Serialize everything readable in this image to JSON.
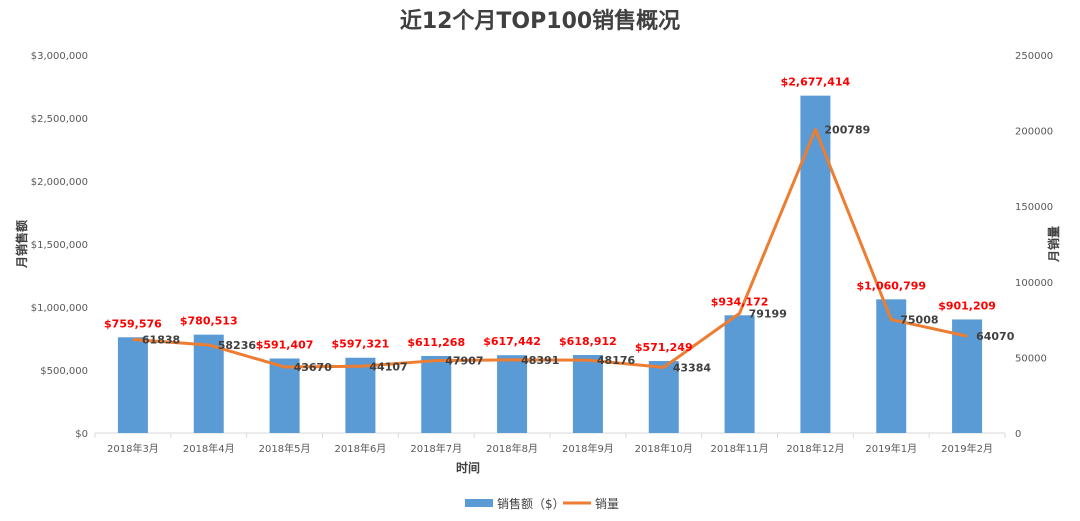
{
  "chart_data": {
    "type": "bar+line",
    "title": "近12个月TOP100销售概况",
    "xlabel": "时间",
    "ylabel": "月销售额",
    "y2label": "月销量",
    "categories": [
      "2018年3月",
      "2018年4月",
      "2018年5月",
      "2018年6月",
      "2018年7月",
      "2018年8月",
      "2018年9月",
      "2018年10月",
      "2018年11月",
      "2018年12月",
      "2019年1月",
      "2019年2月"
    ],
    "series": [
      {
        "name": "销售额（$）",
        "type": "bar",
        "axis": "left",
        "color": "#5b9bd5",
        "values": [
          759576,
          780513,
          591407,
          597321,
          611268,
          617442,
          618912,
          571249,
          934172,
          2677414,
          1060799,
          901209
        ],
        "labels": [
          "$759,576",
          "$780,513",
          "$591,407",
          "$597,321",
          "$611,268",
          "$617,442",
          "$618,912",
          "$571,249",
          "$934,172",
          "$2,677,414",
          "$1,060,799",
          "$901,209"
        ]
      },
      {
        "name": "销量",
        "type": "line",
        "axis": "right",
        "color": "#ed7d31",
        "values": [
          61838,
          58236,
          43670,
          44107,
          47907,
          48391,
          48176,
          43384,
          79199,
          200789,
          75008,
          64070
        ],
        "labels": [
          "61838",
          "58236",
          "43670",
          "44107",
          "47907",
          "48391",
          "48176",
          "43384",
          "79199",
          "200789",
          "75008",
          "64070"
        ]
      }
    ],
    "ylim": [
      0,
      3000000
    ],
    "y2lim": [
      0,
      250000
    ],
    "yticks": [
      "$0",
      "$500,000",
      "$1,000,000",
      "$1,500,000",
      "$2,000,000",
      "$2,500,000",
      "$3,000,000"
    ],
    "y2ticks": [
      "0",
      "50000",
      "100000",
      "150000",
      "200000",
      "250000"
    ],
    "legend": "bottom",
    "label_color": "#ff0000"
  }
}
